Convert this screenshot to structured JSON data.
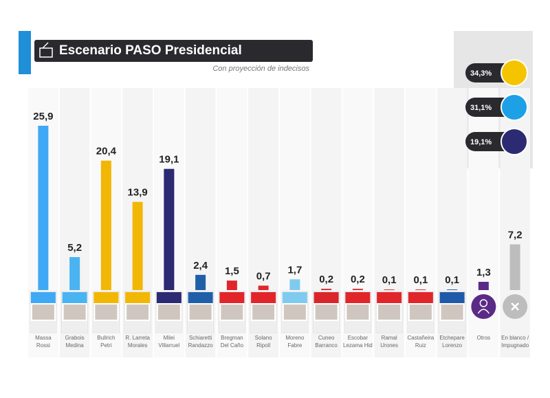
{
  "chart_data": {
    "type": "bar",
    "title": "Escenario PASO Presidencial",
    "subtitle": "Con proyección de indecisos",
    "categories": [
      [
        "Massa",
        "Rossi"
      ],
      [
        "Grabois",
        "Medina"
      ],
      [
        "Bullrich",
        "Petri"
      ],
      [
        "R. Larreta",
        "Morales"
      ],
      [
        "Milei",
        "Villarruel"
      ],
      [
        "Schiaretti",
        "Randazzo"
      ],
      [
        "Bregman",
        "Del Caño"
      ],
      [
        "Solano",
        "Ripoll"
      ],
      [
        "Moreno",
        "Fabre"
      ],
      [
        "Cuneo",
        "Barranco"
      ],
      [
        "Escobar",
        "Lezama Hid"
      ],
      [
        "Ramal",
        "Urones"
      ],
      [
        "Castañeira",
        "Ruiz"
      ],
      [
        "Etchepare",
        "Lorenzo"
      ],
      [
        "Otros"
      ],
      [
        "En blanco /",
        "Impugnado"
      ]
    ],
    "values": [
      25.9,
      5.2,
      20.4,
      13.9,
      19.1,
      2.4,
      1.5,
      0.7,
      1.7,
      0.2,
      0.2,
      0.1,
      0.1,
      0.1,
      1.3,
      7.2
    ],
    "value_labels": [
      "25,9",
      "5,2",
      "20,4",
      "13,9",
      "19,1",
      "2,4",
      "1,5",
      "0,7",
      "1,7",
      "0,2",
      "0,2",
      "0,1",
      "0,1",
      "0,1",
      "1,3",
      "7,2"
    ],
    "colors": [
      "#3fa9f5",
      "#4ab3f2",
      "#f2b705",
      "#f2b705",
      "#2b2a72",
      "#1f5fa8",
      "#e0262b",
      "#e0262b",
      "#7fcbef",
      "#d8262b",
      "#e0262b",
      "#e0262b",
      "#e0262b",
      "#1e5aa8",
      "#5b2a86",
      "#bdbdbd"
    ],
    "ylim": [
      0,
      26
    ],
    "side_panel": [
      {
        "label": "34,3%",
        "color": "#f5c400"
      },
      {
        "label": "31,1%",
        "color": "#1ea0e6"
      },
      {
        "label": "19,1%",
        "color": "#2b2a72"
      }
    ]
  }
}
